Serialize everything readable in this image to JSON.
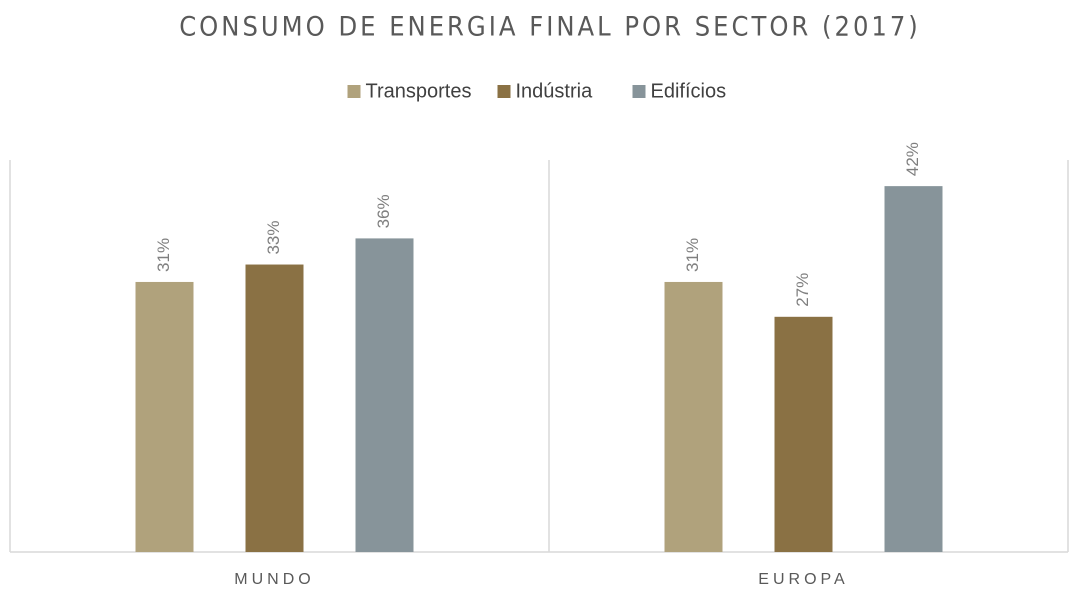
{
  "chart_data": {
    "type": "bar",
    "title": "CONSUMO DE ENERGIA FINAL POR SECTOR (2017)",
    "categories": [
      "MUNDO",
      "EUROPA"
    ],
    "series": [
      {
        "name": "Transportes",
        "color": "#b0a27c",
        "values": [
          31,
          31
        ],
        "value_labels": [
          "31%",
          "31%"
        ]
      },
      {
        "name": "Indústria",
        "color": "#8a7144",
        "values": [
          33,
          27
        ],
        "value_labels": [
          "33%",
          "27%"
        ]
      },
      {
        "name": "Edifícios",
        "color": "#87949a",
        "values": [
          36,
          42
        ],
        "value_labels": [
          "36%",
          "42%"
        ]
      }
    ],
    "ylim": [
      0,
      45
    ],
    "legend": "top"
  }
}
